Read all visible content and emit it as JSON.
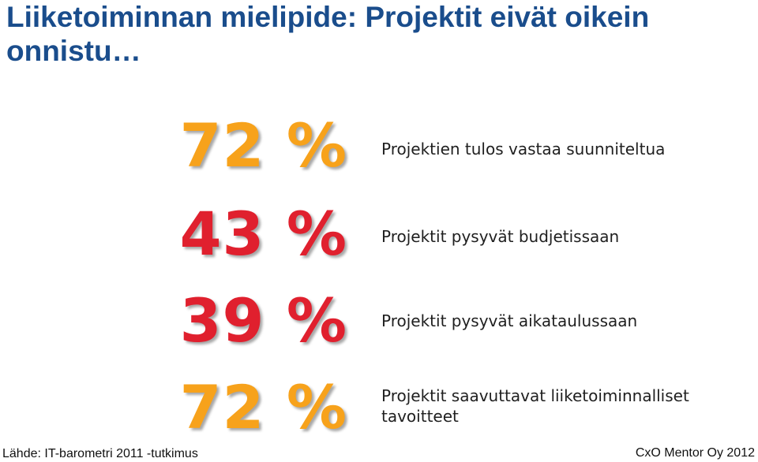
{
  "title": "Liiketoiminnan mielipide: Projektit eivät oikein onnistu…",
  "colors": {
    "title": "#1a4d8c",
    "orange": "#f7a21b",
    "red": "#e0202e",
    "text": "#1f1f1f"
  },
  "stats": [
    {
      "value": "72 %",
      "description": "Projektien tulos vastaa suunniteltua",
      "color": "#f7a21b"
    },
    {
      "value": "43 %",
      "description": "Projektit pysyvät budjetissaan",
      "color": "#e0202e"
    },
    {
      "value": "39 %",
      "description": "Projektit pysyvät aikataulussaan",
      "color": "#e0202e"
    },
    {
      "value": "72 %",
      "description": "Projektit saavuttavat liiketoiminnalliset tavoitteet",
      "color": "#f7a21b"
    }
  ],
  "footer": {
    "source": "Lähde: IT-barometri 2011 -tutkimus",
    "company": "CxO Mentor Oy 2012"
  }
}
